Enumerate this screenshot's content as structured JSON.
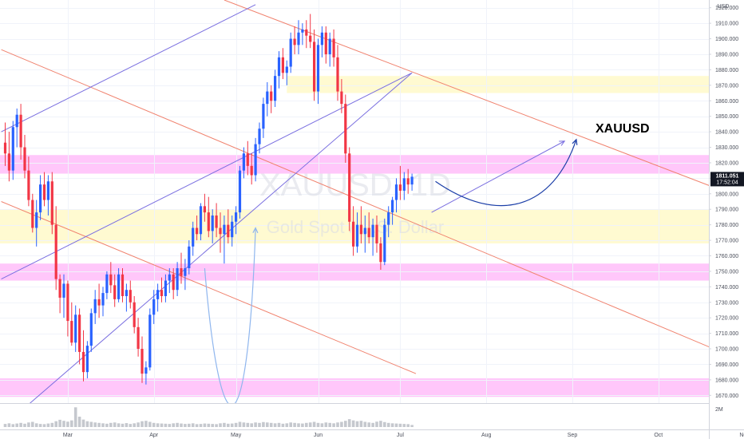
{
  "chart_data": {
    "type": "candlestick",
    "symbol_label": "XAUUSD",
    "watermark_symbol": "XAUUSD, 1D",
    "watermark_name": "Gold Spot / U.S. Dollar",
    "currency": "USD",
    "last_price": "1811.051",
    "countdown": "17:52:04",
    "volume_axis_label": "2M",
    "y_ticks": [
      1670,
      1680,
      1690,
      1700,
      1710,
      1720,
      1730,
      1740,
      1750,
      1760,
      1770,
      1780,
      1790,
      1800,
      1810,
      1820,
      1830,
      1840,
      1850,
      1860,
      1870,
      1880,
      1890,
      1900,
      1910,
      1920
    ],
    "y_tick_labels": [
      "1670.000",
      "1680.000",
      "1690.000",
      "1700.000",
      "1710.000",
      "1720.000",
      "1730.000",
      "1740.000",
      "1750.000",
      "1760.000",
      "1770.000",
      "1780.000",
      "1790.000",
      "1800.000",
      "1810.000",
      "1820.000",
      "1830.000",
      "1840.000",
      "1850.000",
      "1860.000",
      "1870.000",
      "1880.000",
      "1890.000",
      "1900.000",
      "1910.000",
      "1920.000"
    ],
    "x_ticks": [
      {
        "label": "Mar",
        "index": 16
      },
      {
        "label": "Apr",
        "index": 38
      },
      {
        "label": "May",
        "index": 59
      },
      {
        "label": "Jun",
        "index": 80
      },
      {
        "label": "Jul",
        "index": 101
      },
      {
        "label": "Aug",
        "index": 123
      },
      {
        "label": "Sep",
        "index": 145
      },
      {
        "label": "Oct",
        "index": 167
      },
      {
        "label": "Nov",
        "index": 189
      }
    ],
    "ylim": [
      1665,
      1925
    ],
    "zones": [
      {
        "from": 1865,
        "to": 1876,
        "color": "#fff9c9",
        "start": 72
      },
      {
        "from": 1813,
        "to": 1825,
        "color": "#ffbdf9",
        "start": 0
      },
      {
        "from": 1768,
        "to": 1790,
        "color": "#fff9c9",
        "start": 0
      },
      {
        "from": 1744,
        "to": 1755,
        "color": "#ffbdf9",
        "start": 0
      },
      {
        "from": 1669,
        "to": 1681,
        "color": "#ffbdf9",
        "start": 0
      }
    ],
    "lines": [
      {
        "color": "#f0826e",
        "points": [
          [
            56,
            1925
          ],
          [
            200,
            1786
          ]
        ]
      },
      {
        "color": "#f0826e",
        "points": [
          [
            -1,
            1893
          ],
          [
            200,
            1680
          ]
        ]
      },
      {
        "color": "#f0826e",
        "points": [
          [
            -1,
            1795
          ],
          [
            105,
            1684
          ]
        ]
      },
      {
        "color": "#7a6fe0",
        "points": [
          [
            -1,
            1840
          ],
          [
            64,
            1922
          ]
        ]
      },
      {
        "color": "#7a6fe0",
        "points": [
          [
            5,
            1662
          ],
          [
            104,
            1878
          ]
        ]
      },
      {
        "color": "#7a6fe0",
        "points": [
          [
            -1,
            1745
          ],
          [
            104,
            1878
          ]
        ]
      },
      {
        "color": "#7a6fe0",
        "points": [
          [
            109,
            1788
          ],
          [
            143,
            1834
          ]
        ]
      }
    ],
    "projection_curves": [
      {
        "color": "#1c3fa8",
        "points": [
          [
            110,
            1808
          ],
          [
            126,
            1780
          ],
          [
            140,
            1790
          ],
          [
            146,
            1835
          ]
        ]
      },
      {
        "color": "#8fb6ee",
        "points": [
          [
            51,
            1752
          ],
          [
            55,
            1630
          ],
          [
            62,
            1630
          ],
          [
            64,
            1778
          ]
        ]
      }
    ],
    "candles": [
      [
        1833,
        1846,
        1818,
        1826
      ],
      [
        1826,
        1840,
        1808,
        1815
      ],
      [
        1815,
        1847,
        1809,
        1843
      ],
      [
        1843,
        1855,
        1830,
        1851
      ],
      [
        1851,
        1858,
        1822,
        1830
      ],
      [
        1830,
        1838,
        1810,
        1815
      ],
      [
        1815,
        1824,
        1792,
        1796
      ],
      [
        1796,
        1800,
        1775,
        1778
      ],
      [
        1778,
        1796,
        1766,
        1788
      ],
      [
        1788,
        1812,
        1783,
        1806
      ],
      [
        1806,
        1814,
        1792,
        1796
      ],
      [
        1796,
        1812,
        1786,
        1808
      ],
      [
        1808,
        1814,
        1774,
        1780
      ],
      [
        1780,
        1792,
        1738,
        1745
      ],
      [
        1745,
        1748,
        1723,
        1733
      ],
      [
        1733,
        1748,
        1720,
        1742
      ],
      [
        1742,
        1744,
        1708,
        1718
      ],
      [
        1718,
        1730,
        1702,
        1704
      ],
      [
        1704,
        1728,
        1698,
        1722
      ],
      [
        1722,
        1726,
        1690,
        1698
      ],
      [
        1698,
        1712,
        1679,
        1685
      ],
      [
        1685,
        1705,
        1681,
        1702
      ],
      [
        1702,
        1726,
        1698,
        1723
      ],
      [
        1723,
        1738,
        1716,
        1732
      ],
      [
        1732,
        1742,
        1720,
        1728
      ],
      [
        1728,
        1740,
        1721,
        1736
      ],
      [
        1736,
        1750,
        1732,
        1748
      ],
      [
        1748,
        1756,
        1736,
        1741
      ],
      [
        1741,
        1748,
        1727,
        1732
      ],
      [
        1732,
        1752,
        1730,
        1748
      ],
      [
        1748,
        1752,
        1730,
        1734
      ],
      [
        1734,
        1742,
        1724,
        1738
      ],
      [
        1738,
        1744,
        1726,
        1730
      ],
      [
        1730,
        1734,
        1710,
        1714
      ],
      [
        1714,
        1720,
        1695,
        1700
      ],
      [
        1700,
        1708,
        1678,
        1684
      ],
      [
        1684,
        1692,
        1677,
        1688
      ],
      [
        1688,
        1726,
        1686,
        1722
      ],
      [
        1722,
        1738,
        1716,
        1732
      ],
      [
        1732,
        1742,
        1724,
        1738
      ],
      [
        1738,
        1746,
        1730,
        1734
      ],
      [
        1734,
        1748,
        1730,
        1744
      ],
      [
        1744,
        1752,
        1736,
        1748
      ],
      [
        1748,
        1752,
        1732,
        1738
      ],
      [
        1738,
        1756,
        1734,
        1752
      ],
      [
        1752,
        1762,
        1742,
        1747
      ],
      [
        1747,
        1758,
        1738,
        1752
      ],
      [
        1752,
        1770,
        1748,
        1766
      ],
      [
        1766,
        1782,
        1760,
        1778
      ],
      [
        1778,
        1786,
        1770,
        1774
      ],
      [
        1774,
        1794,
        1770,
        1792
      ],
      [
        1792,
        1800,
        1782,
        1788
      ],
      [
        1788,
        1798,
        1772,
        1776
      ],
      [
        1776,
        1790,
        1768,
        1786
      ],
      [
        1786,
        1794,
        1772,
        1778
      ],
      [
        1778,
        1788,
        1762,
        1774
      ],
      [
        1774,
        1786,
        1755,
        1780
      ],
      [
        1780,
        1790,
        1768,
        1772
      ],
      [
        1772,
        1786,
        1766,
        1782
      ],
      [
        1782,
        1792,
        1774,
        1788
      ],
      [
        1788,
        1818,
        1784,
        1815
      ],
      [
        1815,
        1830,
        1810,
        1826
      ],
      [
        1826,
        1834,
        1812,
        1818
      ],
      [
        1818,
        1826,
        1806,
        1812
      ],
      [
        1812,
        1836,
        1808,
        1832
      ],
      [
        1832,
        1846,
        1826,
        1842
      ],
      [
        1842,
        1862,
        1836,
        1858
      ],
      [
        1858,
        1872,
        1850,
        1866
      ],
      [
        1866,
        1870,
        1852,
        1860
      ],
      [
        1860,
        1880,
        1856,
        1876
      ],
      [
        1876,
        1892,
        1868,
        1888
      ],
      [
        1888,
        1894,
        1874,
        1878
      ],
      [
        1878,
        1886,
        1870,
        1882
      ],
      [
        1882,
        1904,
        1878,
        1900
      ],
      [
        1900,
        1908,
        1890,
        1896
      ],
      [
        1896,
        1912,
        1890,
        1904
      ],
      [
        1904,
        1910,
        1896,
        1906
      ],
      [
        1906,
        1912,
        1894,
        1902
      ],
      [
        1902,
        1916,
        1894,
        1898
      ],
      [
        1898,
        1906,
        1860,
        1866
      ],
      [
        1866,
        1900,
        1858,
        1896
      ],
      [
        1896,
        1908,
        1888,
        1904
      ],
      [
        1904,
        1908,
        1884,
        1890
      ],
      [
        1890,
        1904,
        1882,
        1900
      ],
      [
        1900,
        1906,
        1882,
        1888
      ],
      [
        1888,
        1896,
        1860,
        1866
      ],
      [
        1866,
        1874,
        1852,
        1858
      ],
      [
        1858,
        1864,
        1820,
        1826
      ],
      [
        1826,
        1830,
        1776,
        1782
      ],
      [
        1782,
        1792,
        1760,
        1766
      ],
      [
        1766,
        1788,
        1762,
        1780
      ],
      [
        1780,
        1792,
        1768,
        1774
      ],
      [
        1774,
        1786,
        1762,
        1778
      ],
      [
        1778,
        1788,
        1768,
        1772
      ],
      [
        1772,
        1784,
        1760,
        1780
      ],
      [
        1780,
        1786,
        1762,
        1768
      ],
      [
        1768,
        1772,
        1751,
        1756
      ],
      [
        1756,
        1784,
        1754,
        1780
      ],
      [
        1780,
        1792,
        1772,
        1788
      ],
      [
        1788,
        1798,
        1780,
        1796
      ],
      [
        1796,
        1810,
        1788,
        1806
      ],
      [
        1806,
        1818,
        1796,
        1802
      ],
      [
        1802,
        1814,
        1796,
        1810
      ],
      [
        1810,
        1816,
        1800,
        1806
      ],
      [
        1806,
        1813,
        1802,
        1811
      ]
    ],
    "volume": [
      0.15,
      0.18,
      0.14,
      0.17,
      0.2,
      0.16,
      0.22,
      0.25,
      0.18,
      0.15,
      0.14,
      0.17,
      0.2,
      0.28,
      0.35,
      0.3,
      0.26,
      0.32,
      0.95,
      0.5,
      0.36,
      0.28,
      0.25,
      0.22,
      0.2,
      0.18,
      0.16,
      0.2,
      0.22,
      0.18,
      0.16,
      0.19,
      0.15,
      0.18,
      0.22,
      0.28,
      0.3,
      0.25,
      0.2,
      0.18,
      0.17,
      0.16,
      0.15,
      0.18,
      0.2,
      0.17,
      0.15,
      0.16,
      0.18,
      0.14,
      0.15,
      0.17,
      0.16,
      0.15,
      0.14,
      0.18,
      0.2,
      0.16,
      0.17,
      0.2,
      0.25,
      0.22,
      0.2,
      0.18,
      0.22,
      0.2,
      0.24,
      0.22,
      0.2,
      0.18,
      0.2,
      0.16,
      0.18,
      0.22,
      0.2,
      0.18,
      0.17,
      0.2,
      0.22,
      0.25,
      0.2,
      0.18,
      0.22,
      0.2,
      0.18,
      0.22,
      0.25,
      0.3,
      0.38,
      0.32,
      0.28,
      0.3,
      0.25,
      0.22,
      0.2,
      0.26,
      0.3,
      0.24,
      0.2,
      0.18,
      0.17,
      0.16,
      0.15,
      0.14,
      0.1
    ],
    "colors": {
      "up": "#2962ff",
      "down": "#f23645",
      "price_tag": "#131722",
      "grid": "#f0f3fa",
      "axis_text": "#4a4e5a"
    }
  }
}
